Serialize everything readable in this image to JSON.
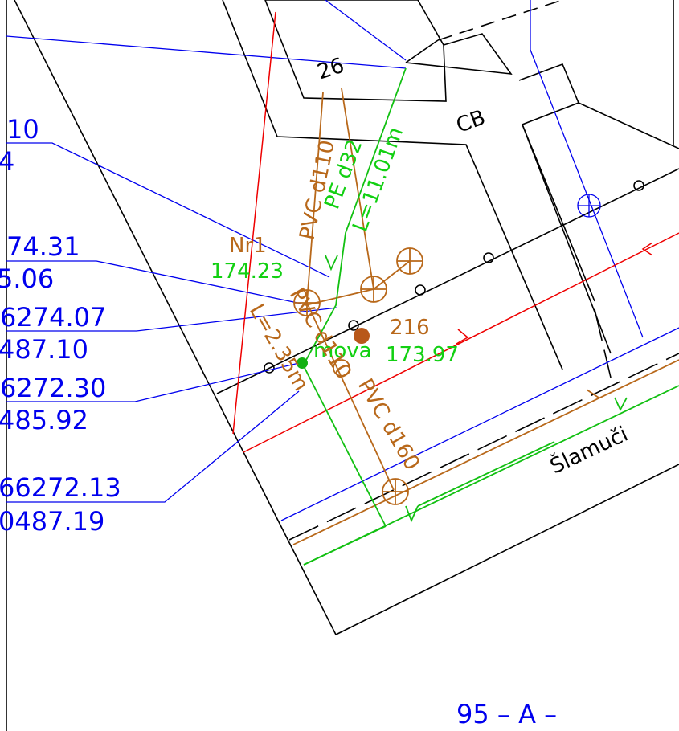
{
  "building": "26",
  "cb": "CB",
  "pipes": [
    "PVC d110",
    "PE d32",
    "L=11.01m",
    "PVC d110",
    "L=2.35m",
    "PVC d160"
  ],
  "nodes": [
    {
      "name": "Nr1",
      "elevation": "174.23"
    },
    {
      "name": "216",
      "elevation": "173.97"
    }
  ],
  "mova": "mova",
  "street": "Šlamuči",
  "coordinates": [
    "10",
    "4",
    "74.31",
    "5.06",
    "6274.07",
    "487.10",
    "6272.30",
    "485.92",
    "66272.13",
    "0487.19"
  ],
  "sheet": "95 – A –"
}
